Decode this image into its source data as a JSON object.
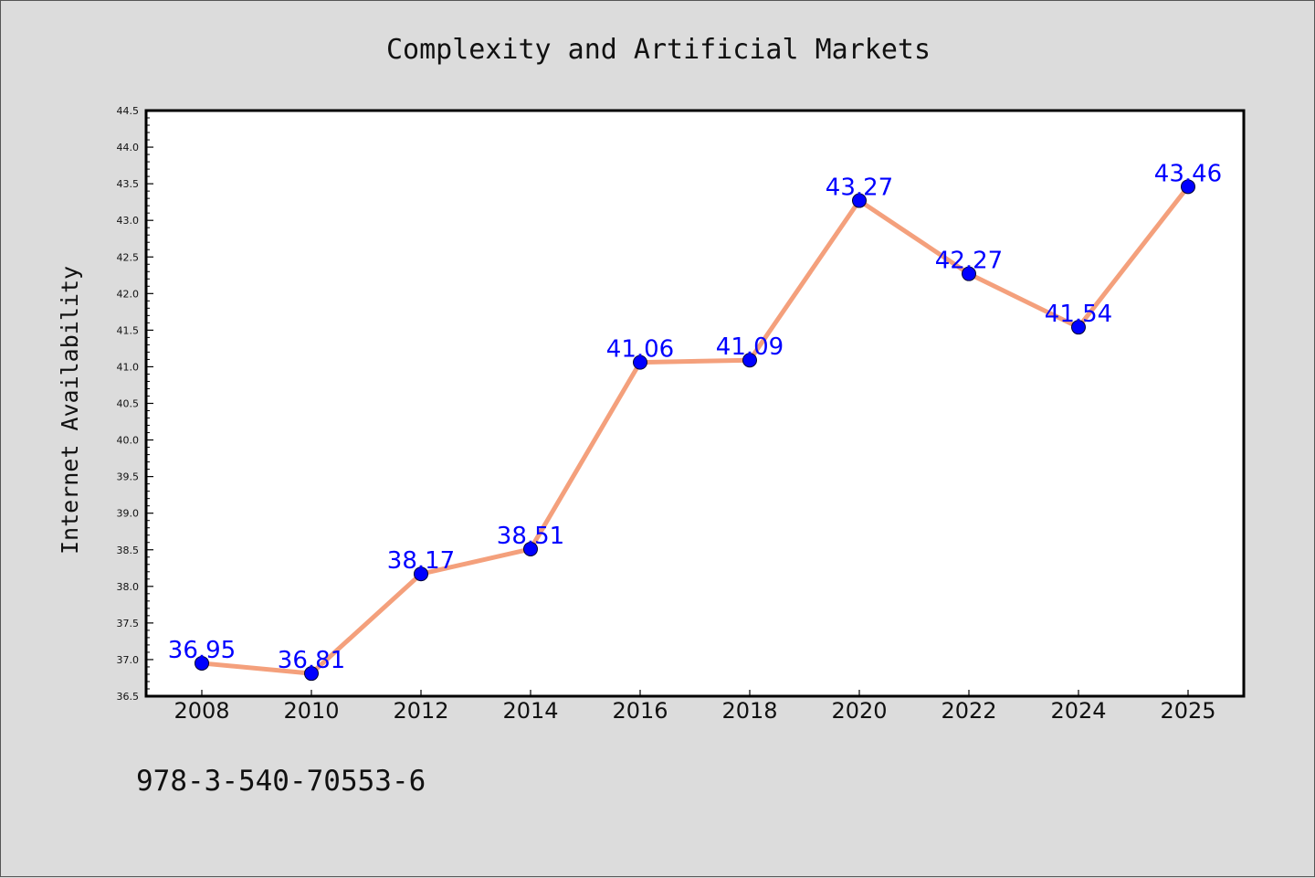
{
  "chart_data": {
    "type": "line",
    "title": "Complexity and Artificial Markets",
    "xlabel": "",
    "ylabel": "Internet Availability",
    "categories": [
      "2008",
      "2010",
      "2012",
      "2014",
      "2016",
      "2018",
      "2020",
      "2022",
      "2024",
      "2025"
    ],
    "series": [
      {
        "values": [
          36.95,
          36.81,
          38.17,
          38.51,
          41.06,
          41.09,
          43.27,
          42.27,
          41.54,
          43.46
        ],
        "data_labels": [
          "36.95",
          "36.81",
          "38.17",
          "38.51",
          "41.06",
          "41.09",
          "43.27",
          "42.27",
          "41.54",
          "43.46"
        ]
      }
    ],
    "ylim": [
      36.5,
      44.5
    ],
    "yticks": [
      "36.5",
      "37.0",
      "37.5",
      "38.0",
      "38.5",
      "39.0",
      "39.5",
      "40.0",
      "40.5",
      "41.0",
      "41.5",
      "42.0",
      "42.5",
      "43.0",
      "43.5",
      "44.0",
      "44.5"
    ],
    "annotation": "978-3-540-70553-6",
    "grid": false,
    "legend": "none",
    "colors": {
      "line": "#f4a07c",
      "marker": "#0000ff",
      "data_label": "#0000ff",
      "plot_background": "#ffffff",
      "figure_background": "#dcdcdc"
    }
  }
}
